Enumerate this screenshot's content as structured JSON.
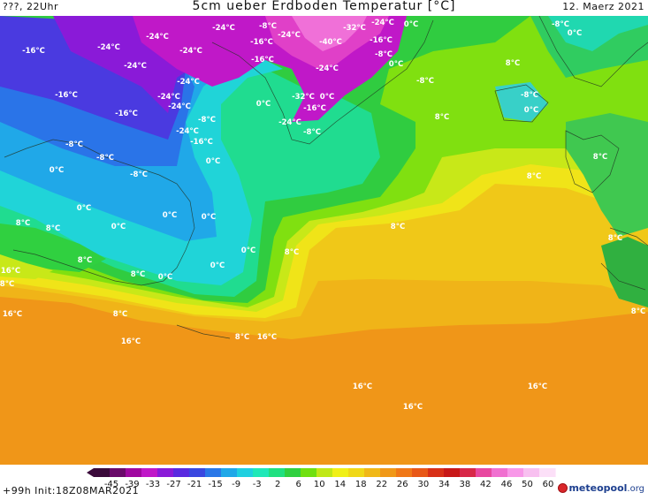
{
  "header": {
    "left": "???, 22Uhr",
    "title": "5cm ueber Erdboden Temperatur [°C]",
    "right": "12. Maerz 2021"
  },
  "footer": {
    "init": "+99h  Init:18Z08MAR2021",
    "logo_brand": "meteopool",
    "logo_tld": ".org"
  },
  "legend": {
    "ticks": [
      "-45",
      "-39",
      "-33",
      "-27",
      "-21",
      "-15",
      "-9",
      "-3",
      "2",
      "6",
      "10",
      "14",
      "18",
      "22",
      "26",
      "30",
      "34",
      "38",
      "42",
      "46",
      "50",
      "60"
    ],
    "colors": [
      "#3a0a3a",
      "#6a0a6a",
      "#a008a0",
      "#c018c8",
      "#8a1ad8",
      "#5a2ae0",
      "#3a48e0",
      "#2a78e8",
      "#20a8e8",
      "#20d0e0",
      "#20e8b8",
      "#20e080",
      "#30d040",
      "#70e010",
      "#c0e818",
      "#f0f018",
      "#f0d818",
      "#f0b818",
      "#f09818",
      "#f07818",
      "#e85818",
      "#d83018",
      "#c81818",
      "#d82848",
      "#e848a0",
      "#f070d0",
      "#f898e8",
      "#f8c0f0",
      "#fce0f8"
    ],
    "colors_note": ""
  },
  "map": {
    "labels": [
      {
        "t": "-16°C",
        "lx": 38,
        "ly": 38
      },
      {
        "t": "-24°C",
        "lx": 123,
        "ly": 34
      },
      {
        "t": "-24°C",
        "lx": 178,
        "ly": 22
      },
      {
        "t": "-24°C",
        "lx": 253,
        "ly": 12
      },
      {
        "t": "-8°C",
        "lx": 303,
        "ly": 10
      },
      {
        "t": "-16°C",
        "lx": 296,
        "ly": 28
      },
      {
        "t": "-24°C",
        "lx": 327,
        "ly": 20
      },
      {
        "t": "-32°C",
        "lx": 401,
        "ly": 12
      },
      {
        "t": "-24°C",
        "lx": 433,
        "ly": 6
      },
      {
        "t": "0°C",
        "lx": 465,
        "ly": 8
      },
      {
        "t": "-8°C",
        "lx": 634,
        "ly": 8
      },
      {
        "t": "0°C",
        "lx": 650,
        "ly": 18
      },
      {
        "t": "-16°C",
        "lx": 431,
        "ly": 26
      },
      {
        "t": "-40°C",
        "lx": 374,
        "ly": 28
      },
      {
        "t": "-24°C",
        "lx": 216,
        "ly": 38
      },
      {
        "t": "-16°C",
        "lx": 297,
        "ly": 48
      },
      {
        "t": "-8°C",
        "lx": 434,
        "ly": 42
      },
      {
        "t": "0°C",
        "lx": 448,
        "ly": 53
      },
      {
        "t": "-24°C",
        "lx": 153,
        "ly": 55
      },
      {
        "t": "-24°C",
        "lx": 370,
        "ly": 58
      },
      {
        "t": "-8°C",
        "lx": 481,
        "ly": 72
      },
      {
        "t": "8°C",
        "lx": 580,
        "ly": 52
      },
      {
        "t": "-24°C",
        "lx": 213,
        "ly": 73
      },
      {
        "t": "-16°C",
        "lx": 75,
        "ly": 88
      },
      {
        "t": "-24°C",
        "lx": 191,
        "ly": 90
      },
      {
        "t": "0°C",
        "lx": 298,
        "ly": 98
      },
      {
        "t": "-32°C",
        "lx": 343,
        "ly": 90
      },
      {
        "t": "0°C",
        "lx": 370,
        "ly": 90
      },
      {
        "t": "-16°C",
        "lx": 356,
        "ly": 103
      },
      {
        "t": "-8°C",
        "lx": 599,
        "ly": 88
      },
      {
        "t": "0°C",
        "lx": 601,
        "ly": 105
      },
      {
        "t": "-16°C",
        "lx": 143,
        "ly": 109
      },
      {
        "t": "-24°C",
        "lx": 203,
        "ly": 101
      },
      {
        "t": "-8°C",
        "lx": 234,
        "ly": 116
      },
      {
        "t": "-24°C",
        "lx": 328,
        "ly": 119
      },
      {
        "t": "-8°C",
        "lx": 353,
        "ly": 130
      },
      {
        "t": "8°C",
        "lx": 500,
        "ly": 113
      },
      {
        "t": "-24°C",
        "lx": 212,
        "ly": 129
      },
      {
        "t": "-8°C",
        "lx": 84,
        "ly": 144
      },
      {
        "t": "-16°C",
        "lx": 228,
        "ly": 141
      },
      {
        "t": "-8°C",
        "lx": 119,
        "ly": 159
      },
      {
        "t": "0°C",
        "lx": 241,
        "ly": 163
      },
      {
        "t": "8°C",
        "lx": 679,
        "ly": 158
      },
      {
        "t": "0°C",
        "lx": 64,
        "ly": 173
      },
      {
        "t": "-8°C",
        "lx": 157,
        "ly": 178
      },
      {
        "t": "8°C",
        "lx": 604,
        "ly": 180
      },
      {
        "t": "0°C",
        "lx": 95,
        "ly": 216
      },
      {
        "t": "0°C",
        "lx": 192,
        "ly": 224
      },
      {
        "t": "0°C",
        "lx": 236,
        "ly": 226
      },
      {
        "t": "8°C",
        "lx": 26,
        "ly": 233
      },
      {
        "t": "8°C",
        "lx": 60,
        "ly": 239
      },
      {
        "t": "0°C",
        "lx": 134,
        "ly": 237
      },
      {
        "t": "8°C",
        "lx": 450,
        "ly": 237
      },
      {
        "t": "8°C",
        "lx": 696,
        "ly": 250
      },
      {
        "t": "0°C",
        "lx": 281,
        "ly": 264
      },
      {
        "t": "8°C",
        "lx": 330,
        "ly": 266
      },
      {
        "t": "8°C",
        "lx": 96,
        "ly": 275
      },
      {
        "t": "0°C",
        "lx": 246,
        "ly": 281
      },
      {
        "t": "16°C",
        "lx": 12,
        "ly": 287
      },
      {
        "t": "8°C",
        "lx": 156,
        "ly": 291
      },
      {
        "t": "0°C",
        "lx": 187,
        "ly": 294
      },
      {
        "t": "8°C",
        "lx": 8,
        "ly": 302
      },
      {
        "t": "16°C",
        "lx": 14,
        "ly": 336
      },
      {
        "t": "8°C",
        "lx": 136,
        "ly": 336
      },
      {
        "t": "8°C",
        "lx": 722,
        "ly": 333
      },
      {
        "t": "8°C",
        "lx": 274,
        "ly": 362
      },
      {
        "t": "16°C",
        "lx": 302,
        "ly": 362
      },
      {
        "t": "16°C",
        "lx": 148,
        "ly": 367
      },
      {
        "t": "16°C",
        "lx": 410,
        "ly": 418
      },
      {
        "t": "16°C",
        "lx": 608,
        "ly": 418
      },
      {
        "t": "16°C",
        "lx": 467,
        "ly": 441
      }
    ]
  }
}
